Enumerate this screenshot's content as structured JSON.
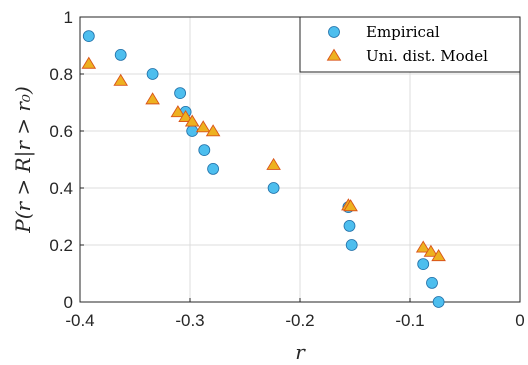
{
  "chart_data": {
    "type": "scatter",
    "xlabel": "r",
    "ylabel": "P(r > R|r > r₀)",
    "xlim": [
      -0.4,
      0
    ],
    "ylim": [
      0,
      1
    ],
    "xticks": [
      "-0.4",
      "-0.3",
      "-0.2",
      "-0.1",
      "0"
    ],
    "yticks": [
      "0",
      "0.2",
      "0.4",
      "0.6",
      "0.8",
      "1"
    ],
    "xtick_values": [
      -0.4,
      -0.3,
      -0.2,
      -0.1,
      0
    ],
    "ytick_values": [
      0,
      0.2,
      0.4,
      0.6,
      0.8,
      1
    ],
    "grid": true,
    "legend_position": "top-right",
    "series": [
      {
        "name": "Empirical",
        "marker": "circle",
        "color": "#4DBEEE",
        "edge": "#1f6fa8",
        "points": [
          [
            -0.392,
            0.933
          ],
          [
            -0.363,
            0.867
          ],
          [
            -0.334,
            0.8
          ],
          [
            -0.309,
            0.733
          ],
          [
            -0.304,
            0.667
          ],
          [
            -0.298,
            0.6
          ],
          [
            -0.287,
            0.533
          ],
          [
            -0.279,
            0.467
          ],
          [
            -0.224,
            0.4
          ],
          [
            -0.156,
            0.333
          ],
          [
            -0.155,
            0.267
          ],
          [
            -0.153,
            0.2
          ],
          [
            -0.088,
            0.133
          ],
          [
            -0.08,
            0.067
          ],
          [
            -0.074,
            0.0
          ]
        ]
      },
      {
        "name": "Uni. dist. Model",
        "marker": "triangle",
        "color": "#EDB120",
        "edge": "#D95319",
        "points": [
          [
            -0.392,
            0.835
          ],
          [
            -0.363,
            0.775
          ],
          [
            -0.334,
            0.71
          ],
          [
            -0.311,
            0.665
          ],
          [
            -0.304,
            0.648
          ],
          [
            -0.298,
            0.632
          ],
          [
            -0.288,
            0.612
          ],
          [
            -0.279,
            0.598
          ],
          [
            -0.224,
            0.48
          ],
          [
            -0.156,
            0.338
          ],
          [
            -0.154,
            0.335
          ],
          [
            -0.088,
            0.19
          ],
          [
            -0.081,
            0.175
          ],
          [
            -0.074,
            0.16
          ]
        ]
      }
    ]
  }
}
